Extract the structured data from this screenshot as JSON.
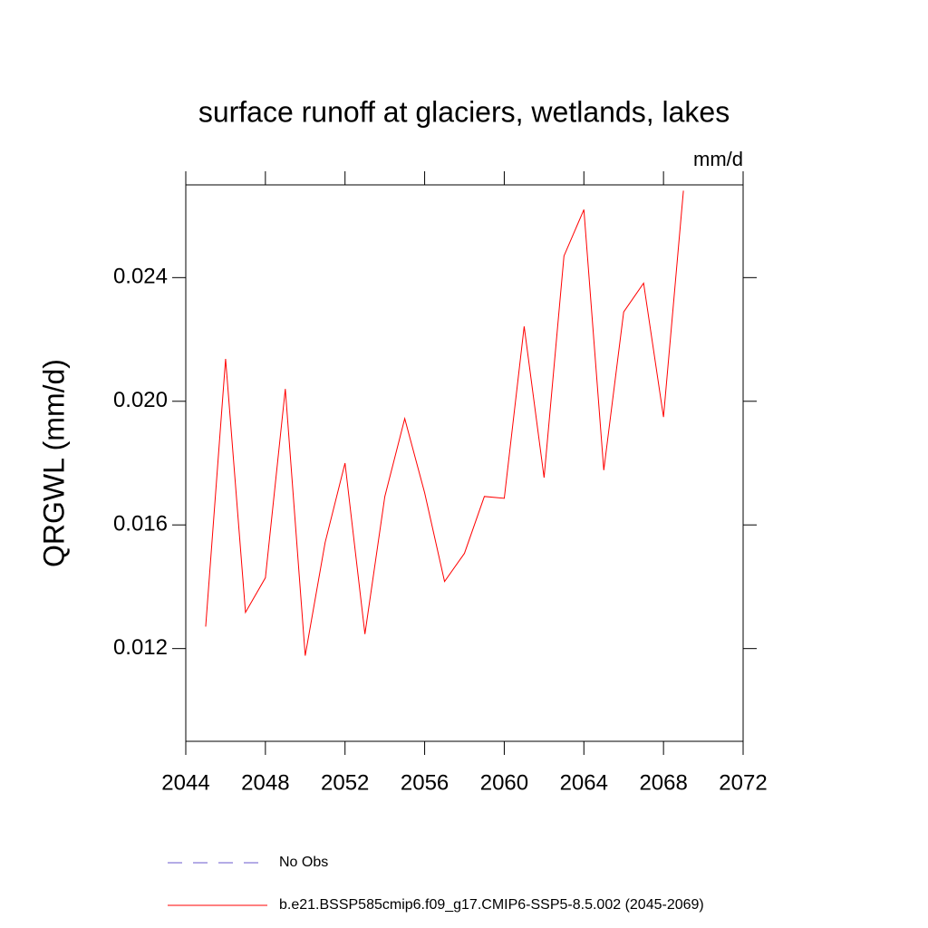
{
  "chart_data": {
    "type": "line",
    "title": "surface runoff at glaciers, wetlands, lakes",
    "units": "mm/d",
    "y_label": "QRGWL  (mm/d)",
    "x": [
      2045,
      2046,
      2047,
      2048,
      2049,
      2050,
      2051,
      2052,
      2053,
      2054,
      2055,
      2056,
      2057,
      2058,
      2059,
      2060,
      2061,
      2062,
      2063,
      2064,
      2065,
      2066,
      2067,
      2068,
      2069
    ],
    "series": [
      {
        "name": "No Obs",
        "color": "#6a5acd",
        "dashed": true,
        "values": [
          null,
          null,
          null,
          null,
          null,
          null,
          null,
          null,
          null,
          null,
          null,
          null,
          null,
          null,
          null,
          null,
          null,
          null,
          null,
          null,
          null,
          null,
          null,
          null,
          null
        ]
      },
      {
        "name": "b.e21.BSSP585cmip6.f09_g17.CMIP6-SSP5-8.5.002 (2045-2069)",
        "color": "#ff0000",
        "dashed": false,
        "values": [
          0.01271,
          0.02137,
          0.01317,
          0.01429,
          0.0204,
          0.01177,
          0.01543,
          0.018,
          0.01247,
          0.01692,
          0.01944,
          0.01704,
          0.01417,
          0.01508,
          0.01692,
          0.01686,
          0.02242,
          0.01753,
          0.0247,
          0.0262,
          0.01777,
          0.02289,
          0.02382,
          0.01949,
          0.02681
        ]
      }
    ],
    "xlim": [
      2044,
      2072
    ],
    "xticks": [
      2044,
      2048,
      2052,
      2056,
      2060,
      2064,
      2068,
      2072
    ],
    "ylim": [
      0.009,
      0.027
    ],
    "yticks": [
      {
        "value": 0.012,
        "label": "0.012"
      },
      {
        "value": 0.016,
        "label": "0.016"
      },
      {
        "value": 0.02,
        "label": "0.020"
      },
      {
        "value": 0.024,
        "label": "0.024"
      }
    ]
  }
}
